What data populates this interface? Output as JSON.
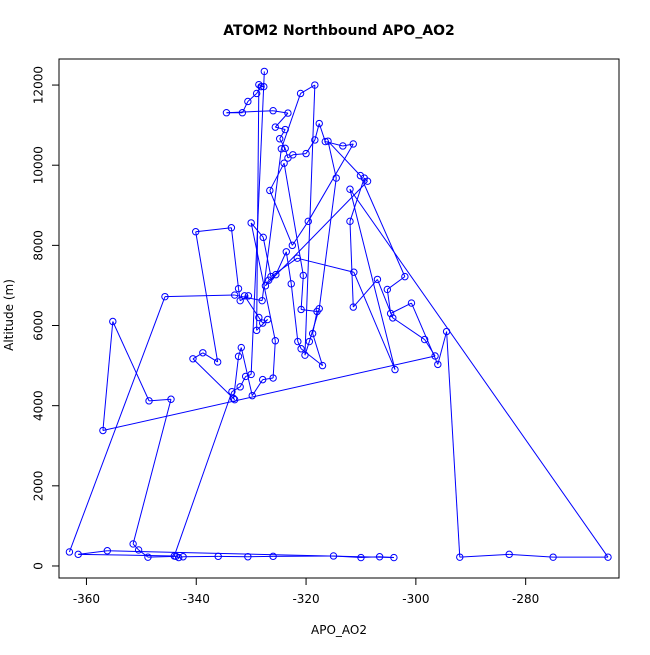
{
  "chart_data": {
    "type": "scatter",
    "title": "ATOM2 Northbound APO_AO2",
    "xlabel": "APO_AO2",
    "ylabel": "Altitude (m)",
    "xlim": [
      -365,
      -263
    ],
    "ylim": [
      -300,
      12650
    ],
    "xticks": [
      -360,
      -340,
      -320,
      -300,
      -280
    ],
    "yticks": [
      0,
      2000,
      4000,
      6000,
      8000,
      10000,
      12000
    ],
    "grid": false,
    "line_color": "#0000ff",
    "marker": "open-circle",
    "series": [
      {
        "points": [
          [
            -363.1,
            350
          ],
          [
            -345.7,
            6720
          ],
          [
            -333.0,
            6760
          ],
          [
            -328.0,
            6620
          ],
          [
            -324.5,
            10410
          ],
          [
            -321.0,
            11790
          ],
          [
            -318.4,
            12000
          ],
          [
            -320.2,
            5260
          ],
          [
            -319.4,
            5600
          ],
          [
            -317.6,
            6420
          ],
          [
            -314.5,
            9680
          ],
          [
            -316.0,
            10600
          ],
          [
            -310.1,
            9740
          ],
          [
            -302.0,
            7220
          ],
          [
            -305.2,
            6900
          ],
          [
            -304.6,
            6300
          ],
          [
            -300.8,
            6560
          ],
          [
            -296.0,
            5030
          ],
          [
            -294.4,
            5850
          ],
          [
            -292.0,
            220
          ],
          [
            -283.0,
            290
          ],
          [
            -275.0,
            220
          ],
          [
            -265.0,
            220
          ],
          [
            -312.0,
            9400
          ],
          [
            -303.8,
            4900
          ],
          [
            -311.3,
            7330
          ],
          [
            -321.6,
            7680
          ],
          [
            -326.4,
            7220
          ],
          [
            -327.8,
            8200
          ],
          [
            -330.0,
            8560
          ],
          [
            -325.6,
            5620
          ],
          [
            -326.0,
            4690
          ],
          [
            -327.9,
            4650
          ],
          [
            -329.8,
            4250
          ],
          [
            -331.8,
            5450
          ],
          [
            -332.3,
            5230
          ],
          [
            -333.2,
            4180
          ],
          [
            -333.0,
            4150
          ],
          [
            -340.6,
            5170
          ],
          [
            -338.8,
            5320
          ],
          [
            -336.1,
            5090
          ],
          [
            -340.1,
            8340
          ],
          [
            -333.6,
            8440
          ],
          [
            -332.3,
            6920
          ],
          [
            -332.0,
            6620
          ],
          [
            -330.5,
            6740
          ],
          [
            -331.2,
            6740
          ],
          [
            -328.6,
            6200
          ],
          [
            -327.9,
            6060
          ],
          [
            -327.0,
            6150
          ],
          [
            -329.0,
            5880
          ],
          [
            -328.6,
            12010
          ],
          [
            -327.7,
            11960
          ],
          [
            -328.2,
            11960
          ],
          [
            -329.0,
            11790
          ],
          [
            -330.6,
            11590
          ],
          [
            -331.6,
            11310
          ],
          [
            -334.5,
            11310
          ],
          [
            -326.0,
            11360
          ],
          [
            -323.3,
            11300
          ],
          [
            -325.6,
            10950
          ],
          [
            -323.8,
            10890
          ],
          [
            -324.8,
            10660
          ],
          [
            -323.8,
            10420
          ],
          [
            -323.3,
            10180
          ],
          [
            -322.4,
            10260
          ],
          [
            -320.0,
            10290
          ],
          [
            -318.4,
            10630
          ],
          [
            -317.6,
            11040
          ],
          [
            -316.5,
            10590
          ],
          [
            -313.3,
            10480
          ],
          [
            -311.4,
            10530
          ],
          [
            -319.6,
            8600
          ],
          [
            -322.5,
            8000
          ],
          [
            -326.6,
            9370
          ],
          [
            -324.0,
            10050
          ],
          [
            -320.5,
            7250
          ],
          [
            -320.9,
            6400
          ],
          [
            -318.0,
            6350
          ],
          [
            -318.8,
            5800
          ],
          [
            -317.0,
            5000
          ],
          [
            -320.9,
            5420
          ],
          [
            -321.5,
            5600
          ],
          [
            -322.7,
            7040
          ],
          [
            -323.6,
            7840
          ],
          [
            -325.5,
            7270
          ],
          [
            -326.8,
            7130
          ],
          [
            -327.4,
            6990
          ],
          [
            -308.8,
            9600
          ],
          [
            -309.4,
            9680
          ],
          [
            -312.0,
            8600
          ],
          [
            -311.4,
            6460
          ],
          [
            -307.0,
            7150
          ],
          [
            -304.2,
            6190
          ],
          [
            -298.4,
            5650
          ],
          [
            -296.5,
            5240
          ],
          [
            -357.0,
            3380
          ],
          [
            -355.2,
            6100
          ],
          [
            -348.6,
            4120
          ],
          [
            -344.6,
            4160
          ],
          [
            -351.5,
            550
          ],
          [
            -350.5,
            400
          ],
          [
            -348.8,
            220
          ],
          [
            -343.7,
            240
          ],
          [
            -343.2,
            210
          ],
          [
            -342.4,
            230
          ],
          [
            -336.0,
            240
          ],
          [
            -330.6,
            230
          ],
          [
            -326.0,
            240
          ],
          [
            -315.0,
            250
          ],
          [
            -310.0,
            210
          ],
          [
            -306.6,
            230
          ],
          [
            -304.0,
            210
          ],
          [
            -356.2,
            380
          ],
          [
            -361.5,
            290
          ],
          [
            -344.0,
            250
          ],
          [
            -333.5,
            4350
          ],
          [
            -332.0,
            4470
          ],
          [
            -331.0,
            4730
          ],
          [
            -330.0,
            4780
          ],
          [
            -327.6,
            12340
          ]
        ]
      }
    ]
  }
}
